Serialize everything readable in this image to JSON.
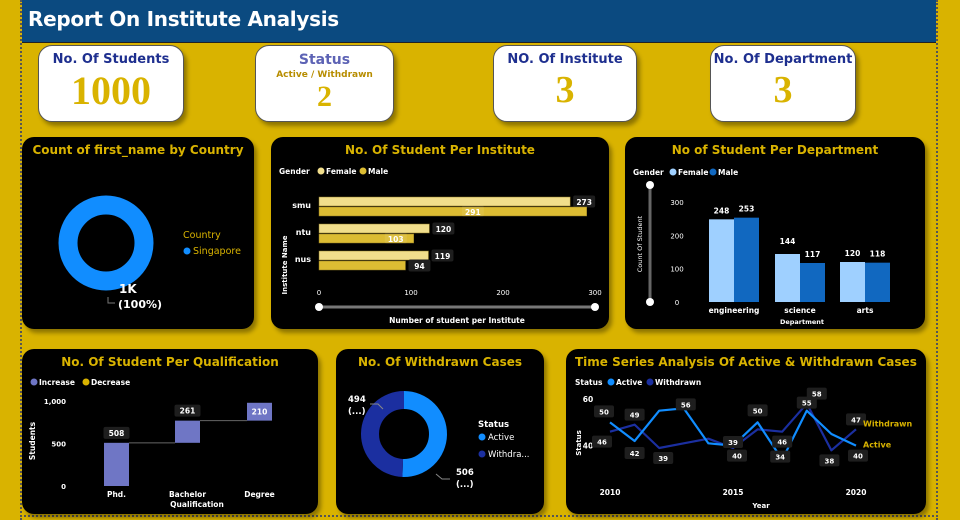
{
  "header": {
    "title": "Report On Institute Analysis"
  },
  "kpis": [
    {
      "title": "No. Of Students",
      "subtitle": "",
      "value": "1000"
    },
    {
      "title": "Status",
      "subtitle": "Active / Withdrawn",
      "value": "2"
    },
    {
      "title": "NO. Of Institute",
      "subtitle": "",
      "value": "3"
    },
    {
      "title": "No. Of Department",
      "subtitle": "",
      "value": "3"
    }
  ],
  "colors": {
    "background": "#d9b300",
    "header": "#0b4a80",
    "female_gold": "#f1de8c",
    "male_gold": "#dcbc33",
    "female_blue": "#9fd0ff",
    "male_blue": "#1168c0",
    "active": "#118dff",
    "withdrawn": "#1b2fa0",
    "increase": "#6f76c5",
    "decrease": "#d9b300"
  },
  "chart_data": [
    {
      "type": "pie",
      "title": "Count of first_name by Country",
      "legend_title": "Country",
      "legend_position": "right",
      "slices": [
        {
          "label": "Singapore",
          "value": 1000,
          "percent": 100
        }
      ],
      "data_label": "1K",
      "data_label_pct": "(100%)"
    },
    {
      "type": "bar",
      "orientation": "horizontal",
      "title": "No. Of Student Per Institute",
      "legend_title": "Gender",
      "legend_position": "top-left",
      "categories": [
        "smu",
        "ntu",
        "nus"
      ],
      "series": [
        {
          "name": "Female",
          "values": [
            273,
            120,
            119
          ]
        },
        {
          "name": "Male",
          "values": [
            291,
            103,
            94
          ]
        }
      ],
      "xlabel": "Number of student per Institute",
      "ylabel": "Institute Name",
      "xlim": [
        0,
        300
      ],
      "xticks": [
        "0",
        "100",
        "200",
        "300"
      ]
    },
    {
      "type": "bar",
      "title": "No of Student Per Department",
      "legend_title": "Gender",
      "legend_position": "top-left",
      "categories": [
        "engineering",
        "science",
        "arts"
      ],
      "series": [
        {
          "name": "Female",
          "values": [
            248,
            144,
            120
          ]
        },
        {
          "name": "Male",
          "values": [
            253,
            117,
            118
          ]
        }
      ],
      "xlabel": "Department",
      "ylabel": "Count Of Student",
      "ylim": [
        0,
        300
      ],
      "yticks": [
        "0",
        "100",
        "200",
        "300"
      ]
    },
    {
      "type": "bar",
      "subtype": "waterfall",
      "title": "No. Of Student Per Qualification",
      "legend_position": "top-left",
      "legend": [
        "Increase",
        "Decrease"
      ],
      "categories": [
        "Phd.",
        "Bachelor",
        "Degree"
      ],
      "values": [
        508,
        261,
        210
      ],
      "xlabel": "Qualification",
      "ylabel": "Students",
      "ylim": [
        0,
        1000
      ],
      "yticks": [
        "0",
        "500",
        "1,000"
      ]
    },
    {
      "type": "pie",
      "subtype": "donut",
      "title": "No. Of Withdrawn Cases",
      "legend_title": "Status",
      "legend_position": "right",
      "slices": [
        {
          "label": "Active",
          "value": 506,
          "data_label": "506",
          "pct_label": "(...)"
        },
        {
          "label": "Withdra...",
          "value": 494,
          "data_label": "494",
          "pct_label": "(...)"
        }
      ]
    },
    {
      "type": "line",
      "title": "Time Series Analysis Of Active & Withdrawn Cases",
      "legend_title": "Status",
      "legend_position": "top-left",
      "x": [
        2010,
        2011,
        2012,
        2013,
        2014,
        2015,
        2016,
        2017,
        2018,
        2019,
        2020
      ],
      "series": [
        {
          "name": "Active",
          "end_label": "Active",
          "values": [
            50,
            42,
            55,
            56,
            41,
            40,
            50,
            34,
            55,
            45,
            40
          ],
          "labels": [
            "50",
            "42",
            "",
            "56",
            "",
            "40",
            "50",
            "34",
            "55",
            "",
            "40"
          ]
        },
        {
          "name": "Withdrawn",
          "end_label": "Withdrawn",
          "values": [
            46,
            49,
            39,
            41,
            43,
            39,
            47,
            46,
            58,
            38,
            47
          ],
          "labels": [
            "46",
            "49",
            "39",
            "",
            "",
            "39",
            "",
            "46",
            "58",
            "38",
            "47"
          ]
        }
      ],
      "xlabel": "Year",
      "ylabel": "Status",
      "ylim": [
        30,
        60
      ],
      "yticks": [
        "40",
        "60"
      ],
      "xticks": [
        "2010",
        "2015",
        "2020"
      ]
    }
  ]
}
